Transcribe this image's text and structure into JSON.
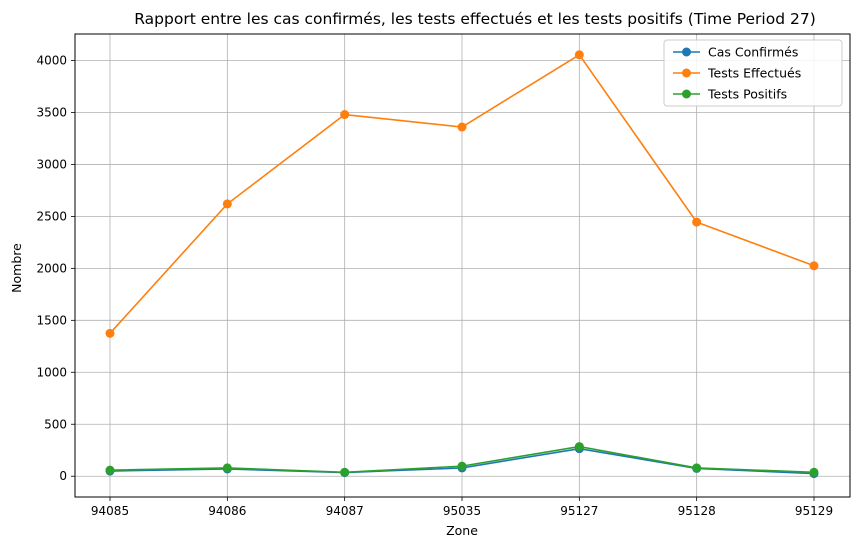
{
  "chart_data": {
    "type": "line",
    "title": "Rapport entre les cas confirmés, les tests effectués et les tests positifs (Time Period 27)",
    "xlabel": "Zone",
    "ylabel": "Nombre",
    "categories": [
      "94085",
      "94086",
      "94087",
      "95035",
      "95127",
      "95128",
      "95129"
    ],
    "ylim": [
      -200,
      4255
    ],
    "yticks": [
      0,
      500,
      1000,
      1500,
      2000,
      2500,
      3000,
      3500,
      4000
    ],
    "grid": true,
    "legend_position": "top-right",
    "series": [
      {
        "name": "Cas Confirmés",
        "color": "#1f77b4",
        "values": [
          50,
          70,
          35,
          80,
          265,
          75,
          25
        ]
      },
      {
        "name": "Tests Effectués",
        "color": "#ff7f0e",
        "values": [
          1375,
          2620,
          3480,
          3360,
          4055,
          2445,
          2025
        ]
      },
      {
        "name": "Tests Positifs",
        "color": "#2ca02c",
        "values": [
          58,
          80,
          38,
          97,
          285,
          80,
          38
        ]
      }
    ]
  }
}
